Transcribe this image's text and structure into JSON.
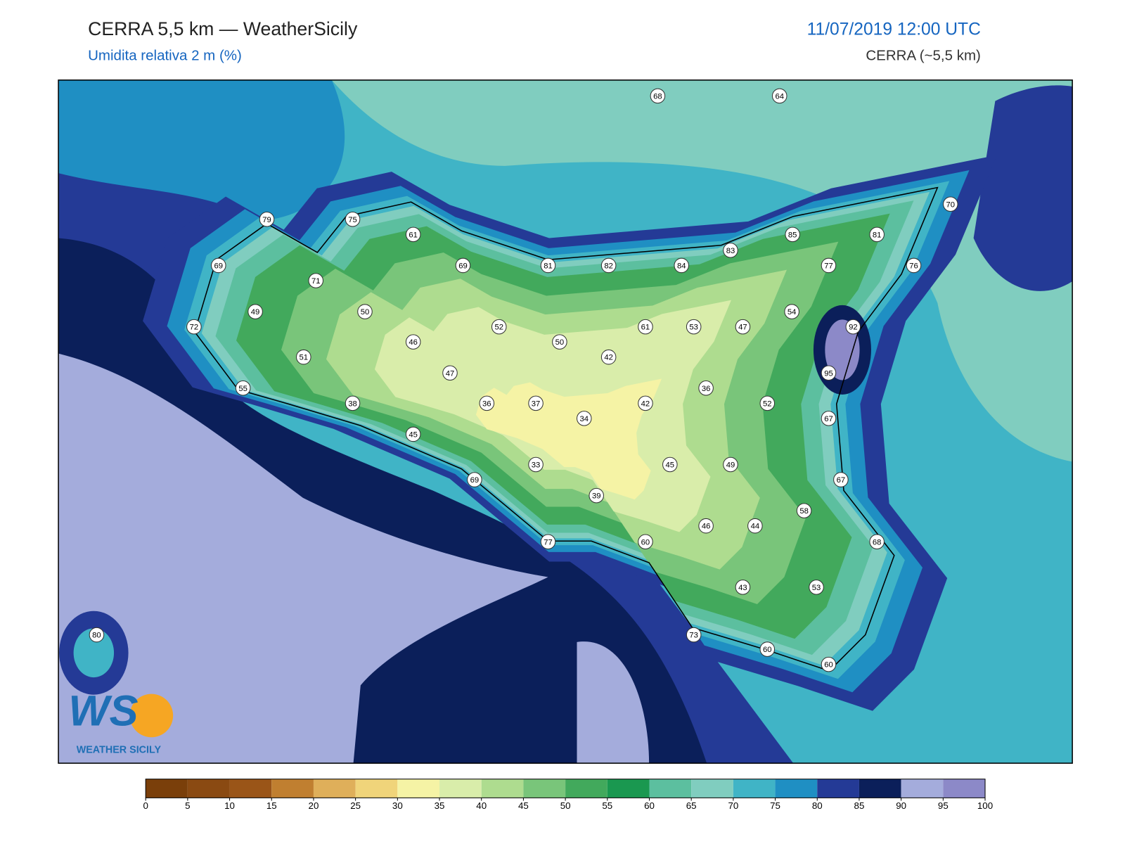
{
  "header": {
    "title": "CERRA 5,5 km — WeatherSicily",
    "subtitle": "Umidita relativa 2 m (%)",
    "datetime": "11/07/2019 12:00 UTC",
    "model": "CERRA (~5,5 km)"
  },
  "stations": [
    68,
    64,
    70,
    79,
    75,
    61,
    85,
    81,
    83,
    69,
    69,
    81,
    82,
    84,
    77,
    76,
    71,
    49,
    50,
    54,
    72,
    52,
    61,
    53,
    47,
    92,
    46,
    50,
    51,
    42,
    47,
    95,
    55,
    36,
    38,
    36,
    37,
    42,
    52,
    34,
    67,
    45,
    33,
    45,
    49,
    69,
    67,
    39,
    58,
    46,
    44,
    77,
    60,
    68,
    43,
    53,
    73,
    80,
    60,
    60
  ],
  "colorbar": {
    "ticks": [
      0,
      5,
      10,
      15,
      20,
      25,
      30,
      35,
      40,
      45,
      50,
      55,
      60,
      65,
      70,
      75,
      80,
      85,
      90,
      95,
      100
    ],
    "colors": [
      "#7a3f0a",
      "#8a4a12",
      "#9a5518",
      "#c07f30",
      "#dfaf5a",
      "#f0d47a",
      "#f5f3a5",
      "#d9edaa",
      "#aedc8f",
      "#79c57a",
      "#42a95c",
      "#1a9850",
      "#5cbf9f",
      "#80cdbf",
      "#40b4c6",
      "#1f8fc3",
      "#243a96",
      "#0b1f5a",
      "#a4acdc",
      "#8c89c8"
    ]
  },
  "logo": {
    "mark": "WS",
    "name": "WEATHER SICILY"
  }
}
